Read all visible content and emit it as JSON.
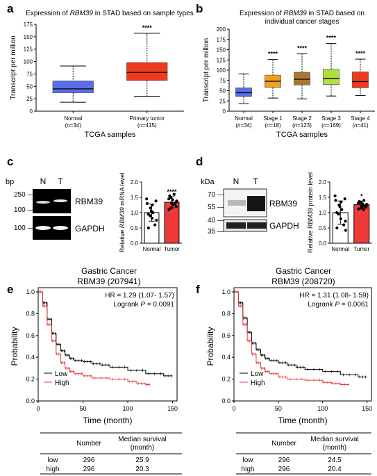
{
  "panel_labels": [
    "a",
    "b",
    "c",
    "d",
    "e",
    "f"
  ],
  "chart_data": [
    {
      "panel": "a",
      "type": "box",
      "title_pre": "Expression of ",
      "title_gene": "RBM39",
      "title_post": " in STAD based on sample types",
      "ylabel": "Transcript per million",
      "xlabel": "TCGA samples",
      "ylim": [
        0,
        175
      ],
      "yticks": [
        0,
        25,
        50,
        75,
        100,
        125,
        150,
        175
      ],
      "groups": [
        {
          "name": "Normal",
          "n_pre": "(",
          "n_italic": "n",
          "n_post": "=34)",
          "min": 18,
          "q1": 37,
          "median": 45,
          "q3": 61,
          "max": 91,
          "color": "#5a6ee8",
          "sig": ""
        },
        {
          "name": "Primary tumor",
          "n_pre": "(",
          "n_italic": "n",
          "n_post": "=415)",
          "min": 30,
          "q1": 62,
          "median": 78,
          "q3": 98,
          "max": 157,
          "color": "#f03a1e",
          "sig": "****"
        }
      ]
    },
    {
      "panel": "b",
      "type": "box",
      "title_line1_pre": "Expression of ",
      "title_gene": "RBM39",
      "title_line1_post": " in STAD based on",
      "title_line2": "individual cancer stages",
      "ylabel": "Transcript per million",
      "xlabel": "TCGA samples",
      "ylim": [
        0,
        200
      ],
      "yticks": [
        0,
        25,
        50,
        75,
        100,
        125,
        150,
        175,
        200
      ],
      "groups": [
        {
          "name": "Normal",
          "n_pre": "(",
          "n_italic": "n",
          "n_post": "=34)",
          "min": 18,
          "q1": 36,
          "median": 45,
          "q3": 57,
          "max": 91,
          "color": "#5a6ee8",
          "sig": ""
        },
        {
          "name": "Stage 1",
          "n_pre": "(",
          "n_italic": "n",
          "n_post": "=18)",
          "min": 32,
          "q1": 58,
          "median": 73,
          "q3": 88,
          "max": 126,
          "color": "#f0a020",
          "sig": "****"
        },
        {
          "name": "Stage 2",
          "n_pre": "(",
          "n_italic": "n",
          "n_post": "=123)",
          "min": 30,
          "q1": 64,
          "median": 78,
          "q3": 95,
          "max": 140,
          "color": "#a87830",
          "sig": "****"
        },
        {
          "name": "Stage 3",
          "n_pre": "(",
          "n_italic": "n",
          "n_post": "=169)",
          "min": 37,
          "q1": 65,
          "median": 80,
          "q3": 102,
          "max": 165,
          "color": "#aee040",
          "sig": "****"
        },
        {
          "name": "Stage 4",
          "n_pre": "(",
          "n_italic": "n",
          "n_post": "=41)",
          "min": 38,
          "q1": 57,
          "median": 72,
          "q3": 96,
          "max": 127,
          "color": "#f03a1e",
          "sig": "****"
        }
      ]
    },
    {
      "panel": "c",
      "type": "bar",
      "ylabel_pre": "Relative ",
      "ylabel_gene": "RBM39",
      "ylabel_post": " mRNA level",
      "ylim": [
        0,
        2.0
      ],
      "yticks": [
        0,
        0.5,
        1.0,
        1.5,
        2.0
      ],
      "categories": [
        "Normal",
        "Tumor"
      ],
      "values": [
        1.0,
        1.34
      ],
      "sd": [
        0.28,
        0.18
      ],
      "colors": [
        "#ffffff",
        "#f03a3a"
      ],
      "sig": [
        "",
        "****"
      ],
      "points": [
        [
          1.45,
          1.38,
          1.3,
          1.25,
          1.15,
          1.05,
          1.0,
          0.95,
          0.9,
          0.82,
          0.75,
          0.6,
          0.5
        ],
        [
          1.6,
          1.55,
          1.5,
          1.45,
          1.42,
          1.38,
          1.35,
          1.32,
          1.28,
          1.25,
          1.2,
          1.15,
          1.1
        ]
      ],
      "gel": {
        "unit": "bp",
        "lanes": [
          "N",
          "T"
        ],
        "markers": [
          "250",
          "100",
          "100"
        ],
        "bands": [
          "RBM39",
          "GAPDH"
        ]
      }
    },
    {
      "panel": "d",
      "type": "bar",
      "ylabel": "Relative RBM39 protein level",
      "ylim": [
        0,
        2.0
      ],
      "yticks": [
        0,
        0.5,
        1.0,
        1.5,
        2.0
      ],
      "categories": [
        "Normal",
        "Tumor"
      ],
      "values": [
        1.0,
        1.26
      ],
      "sd": [
        0.38,
        0.12
      ],
      "colors": [
        "#ffffff",
        "#f03a3a"
      ],
      "sig": [
        "",
        "*"
      ],
      "points": [
        [
          1.55,
          1.45,
          1.4,
          1.35,
          1.25,
          1.2,
          1.1,
          1.0,
          0.95,
          0.8,
          0.72,
          0.6,
          0.5,
          0.42
        ],
        [
          1.4,
          1.36,
          1.34,
          1.31,
          1.29,
          1.27,
          1.25,
          1.24,
          1.22,
          1.2,
          1.18,
          1.15,
          1.12,
          1.1
        ]
      ],
      "blot": {
        "unit": "kDa",
        "lanes": [
          "N",
          "T"
        ],
        "markers": [
          "70",
          "55",
          "40",
          "35"
        ],
        "bands": [
          "RBM39",
          "GAPDH"
        ]
      }
    },
    {
      "panel": "e",
      "type": "line",
      "title_line1": "Gastric Cancer",
      "title_line2": "RBM39 (207941)",
      "hr_text": "HR = 1.29 (1.07- 1.57)",
      "logrank_pre": "Logrank ",
      "logrank_p": "P",
      "logrank_post": " = 0.0091",
      "ylabel": "Probability",
      "xlabel": "Time (month)",
      "xlim": [
        0,
        155
      ],
      "ylim": [
        0,
        1.0
      ],
      "xticks": [
        0,
        50,
        100,
        150
      ],
      "yticks": [
        0.0,
        0.2,
        0.4,
        0.6,
        0.8,
        1.0
      ],
      "series": [
        {
          "name": "Low",
          "color": "#000000",
          "x": [
            0,
            5,
            10,
            15,
            20,
            25,
            30,
            35,
            40,
            50,
            60,
            70,
            80,
            100,
            120,
            140,
            150
          ],
          "y": [
            1.0,
            0.9,
            0.75,
            0.62,
            0.52,
            0.46,
            0.42,
            0.39,
            0.37,
            0.36,
            0.34,
            0.33,
            0.31,
            0.28,
            0.25,
            0.23,
            0.23
          ]
        },
        {
          "name": "High",
          "color": "#e8393a",
          "x": [
            0,
            5,
            10,
            15,
            20,
            25,
            30,
            35,
            40,
            50,
            60,
            80,
            100,
            110,
            120,
            125
          ],
          "y": [
            1.0,
            0.87,
            0.7,
            0.55,
            0.43,
            0.35,
            0.3,
            0.27,
            0.25,
            0.23,
            0.21,
            0.2,
            0.18,
            0.16,
            0.15,
            0.15
          ]
        }
      ],
      "table": {
        "headers": [
          "",
          "Number",
          "Median survival (month)"
        ],
        "header_line1": "Median survival",
        "header_line2": "(month)",
        "rows": [
          [
            "low",
            "296",
            "25.9"
          ],
          [
            "high",
            "296",
            "20.3"
          ]
        ]
      }
    },
    {
      "panel": "f",
      "type": "line",
      "title_line1": "Gastric Cancer",
      "title_line2": "RBM39 (208720)",
      "hr_text": "HR = 1.31 (1.08- 1.59)",
      "logrank_pre": "Logrank ",
      "logrank_p": "P",
      "logrank_post": " = 0.0061",
      "ylabel": "Probability",
      "xlabel": "Time (month)",
      "xlim": [
        0,
        155
      ],
      "ylim": [
        0,
        1.0
      ],
      "xticks": [
        0,
        50,
        100,
        150
      ],
      "yticks": [
        0.0,
        0.2,
        0.4,
        0.6,
        0.8,
        1.0
      ],
      "series": [
        {
          "name": "Low",
          "color": "#000000",
          "x": [
            0,
            5,
            10,
            15,
            20,
            25,
            30,
            35,
            40,
            50,
            60,
            70,
            80,
            100,
            120,
            140,
            150
          ],
          "y": [
            1.0,
            0.9,
            0.76,
            0.63,
            0.53,
            0.47,
            0.42,
            0.39,
            0.37,
            0.35,
            0.33,
            0.31,
            0.29,
            0.27,
            0.24,
            0.22,
            0.22
          ]
        },
        {
          "name": "High",
          "color": "#e8393a",
          "x": [
            0,
            5,
            10,
            15,
            20,
            25,
            30,
            35,
            40,
            50,
            60,
            80,
            100,
            110,
            120,
            130
          ],
          "y": [
            1.0,
            0.87,
            0.7,
            0.55,
            0.43,
            0.35,
            0.3,
            0.27,
            0.25,
            0.22,
            0.2,
            0.19,
            0.17,
            0.16,
            0.15,
            0.15
          ]
        }
      ],
      "table": {
        "headers": [
          "",
          "Number",
          "Median survival (month)"
        ],
        "header_line1": "Median survival",
        "header_line2": "(month)",
        "rows": [
          [
            "low",
            "296",
            "24.5"
          ],
          [
            "high",
            "296",
            "20.4"
          ]
        ]
      }
    }
  ]
}
